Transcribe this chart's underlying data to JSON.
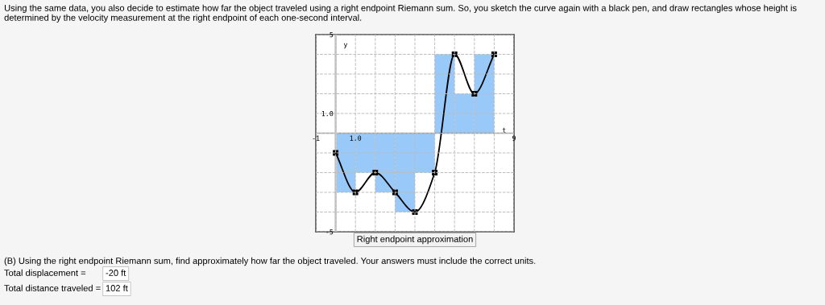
{
  "chart_data": {
    "type": "bar",
    "title": "Using the same data, you also decide to estimate how far the object traveled using a right endpoint Riemann sum. So, you sketch the curve again with a black pen, and draw rectangles whose height is determined by the velocity measurement at the right endpoint of each one-second interval.",
    "xlabel": "t",
    "ylabel": "y",
    "annotations": [
      "Right endpoint approximation",
      "(B) Using the right endpoint Riemann sum, find approximately how far the object traveled. Your answers must include the correct units.",
      "Total displacement = ",
      "-20 ft",
      "Total distance traveled = ",
      "102 ft"
    ],
    "x": [
      0.5,
      1.5,
      2.5,
      3.5,
      4.5,
      5.5,
      6.5,
      7.5
    ],
    "series": [
      {
        "color": "#99c9f9",
        "values": [
          -3,
          -2,
          -3,
          -4,
          -2,
          4,
          2,
          4
        ]
      },
      {
        "type": "line",
        "color": "#000000",
        "x": [
          0,
          1,
          2,
          3,
          4,
          5,
          6,
          7,
          8
        ],
        "values": [
          -1,
          -3,
          -2,
          -3,
          -4,
          -2,
          4,
          2,
          4
        ]
      }
    ],
    "marker": "square",
    "grid": true,
    "xlim": [
      -1,
      9
    ],
    "ylim": [
      -5,
      5
    ],
    "xticks": [
      {
        "value": -1,
        "label": "-1"
      },
      {
        "value": 0,
        "label": null
      },
      {
        "value": 1,
        "label": "1.0"
      },
      {
        "value": 2,
        "label": null
      },
      {
        "value": 3,
        "label": null
      },
      {
        "value": 4,
        "label": null
      },
      {
        "value": 5,
        "label": null
      },
      {
        "value": 6,
        "label": null
      },
      {
        "value": 7,
        "label": null
      },
      {
        "value": 8,
        "label": null
      },
      {
        "value": 9,
        "label": "9"
      }
    ],
    "yticks": [
      {
        "value": -5,
        "label": "-5"
      },
      {
        "value": -4,
        "label": null
      },
      {
        "value": -3,
        "label": null
      },
      {
        "value": -2,
        "label": null
      },
      {
        "value": -1,
        "label": null
      },
      {
        "value": 0,
        "label": null
      },
      {
        "value": 1,
        "label": "1.0"
      },
      {
        "value": 2,
        "label": null
      },
      {
        "value": 3,
        "label": null
      },
      {
        "value": 4,
        "label": null
      },
      {
        "value": 5,
        "label": "5"
      }
    ]
  }
}
